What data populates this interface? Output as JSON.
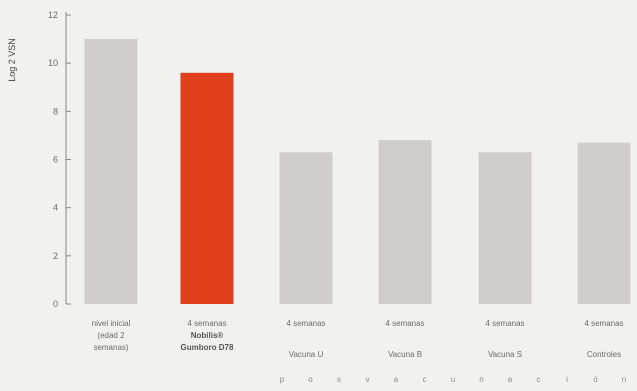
{
  "chart_data": {
    "type": "bar",
    "ylabel": "Log 2 VSN",
    "ylim": [
      0,
      12
    ],
    "yticks": [
      0,
      2,
      4,
      6,
      8,
      10,
      12
    ],
    "grid": false,
    "categories": [
      [
        "nivel inicial",
        "(edad 2",
        "semanas)"
      ],
      [
        "4 semanas",
        "Nobilis®",
        "Gumboro D78"
      ],
      [
        "4 semanas",
        "",
        "Vacuna U"
      ],
      [
        "4 semanas",
        "",
        "Vacuna B"
      ],
      [
        "4 semanas",
        "",
        "Vacuna S"
      ],
      [
        "4 semanas",
        "",
        "Controles"
      ]
    ],
    "values": [
      11.0,
      9.6,
      6.3,
      6.8,
      6.3,
      6.7
    ],
    "highlight_index": 1,
    "colors": {
      "bar": "#cfcccb",
      "highlight": "#e0401c",
      "axis": "#888888"
    },
    "footer_letters": [
      "p",
      "o",
      "s",
      "v",
      "a",
      "c",
      "u",
      "n",
      "a",
      "c",
      "i",
      "ó",
      "n"
    ]
  }
}
